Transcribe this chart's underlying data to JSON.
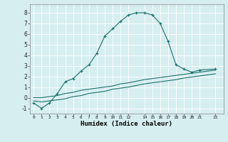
{
  "xlabel": "Humidex (Indice chaleur)",
  "background_color": "#d6eef0",
  "grid_color": "#ffffff",
  "line_color": "#1a706b",
  "xlim": [
    -0.5,
    24.0
  ],
  "ylim": [
    -1.5,
    8.8
  ],
  "xticks": [
    0,
    1,
    2,
    3,
    4,
    5,
    6,
    7,
    8,
    9,
    10,
    11,
    12,
    14,
    15,
    16,
    17,
    18,
    19,
    20,
    21,
    23
  ],
  "yticks": [
    -1,
    0,
    1,
    2,
    3,
    4,
    5,
    6,
    7,
    8
  ],
  "curve1_x": [
    0,
    1,
    2,
    3,
    4,
    5,
    6,
    7,
    8,
    9,
    10,
    11,
    12,
    13,
    14,
    15,
    16,
    17,
    18,
    19,
    20,
    21,
    23
  ],
  "curve1_y": [
    -0.5,
    -1.0,
    -0.5,
    0.4,
    1.5,
    1.8,
    2.5,
    3.1,
    4.2,
    5.8,
    6.5,
    7.2,
    7.8,
    8.0,
    8.0,
    7.8,
    7.0,
    5.3,
    3.1,
    2.7,
    2.4,
    2.6,
    2.7
  ],
  "curve2_x": [
    0,
    1,
    2,
    3,
    4,
    5,
    6,
    7,
    8,
    9,
    10,
    11,
    12,
    14,
    15,
    16,
    17,
    18,
    19,
    20,
    21,
    23
  ],
  "curve2_y": [
    0.0,
    0.0,
    0.1,
    0.2,
    0.4,
    0.5,
    0.7,
    0.8,
    0.9,
    1.0,
    1.1,
    1.3,
    1.4,
    1.7,
    1.8,
    1.9,
    2.0,
    2.1,
    2.2,
    2.3,
    2.4,
    2.6
  ],
  "curve3_x": [
    0,
    1,
    2,
    3,
    4,
    5,
    6,
    7,
    8,
    9,
    10,
    11,
    12,
    14,
    15,
    16,
    17,
    18,
    19,
    20,
    21,
    23
  ],
  "curve3_y": [
    -0.3,
    -0.4,
    -0.3,
    -0.2,
    -0.1,
    0.1,
    0.2,
    0.4,
    0.5,
    0.6,
    0.8,
    0.9,
    1.0,
    1.3,
    1.4,
    1.5,
    1.6,
    1.7,
    1.85,
    1.95,
    2.05,
    2.25
  ]
}
